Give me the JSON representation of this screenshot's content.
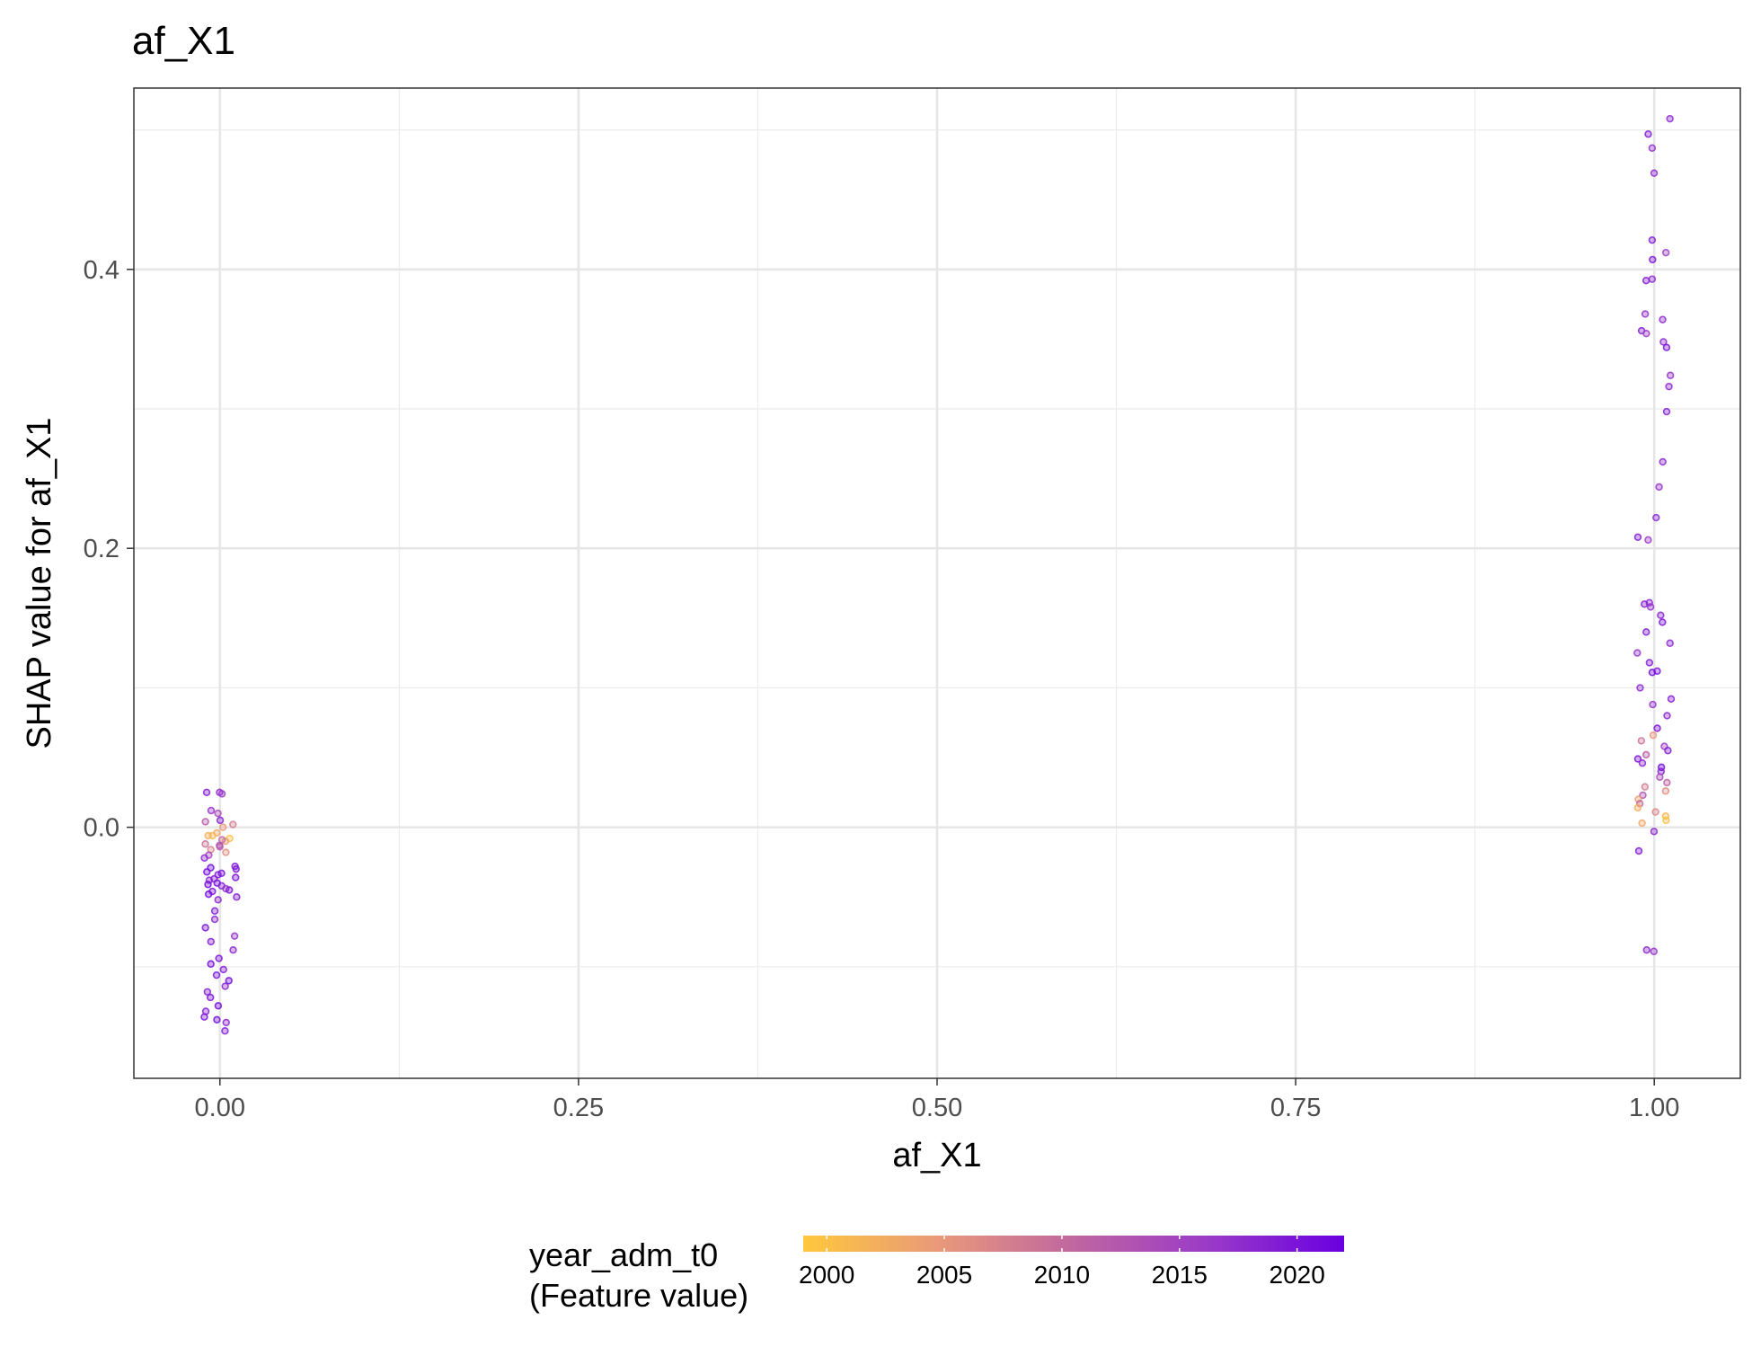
{
  "chart_data": {
    "type": "scatter",
    "title": "af_X1",
    "xlabel": "af_X1",
    "ylabel": "SHAP value for af_X1",
    "xlim": [
      -0.06,
      1.06
    ],
    "ylim": [
      -0.18,
      0.53
    ],
    "x_ticks": [
      0,
      0.25,
      0.5,
      0.75,
      1.0
    ],
    "x_tick_labels": [
      "0.00",
      "0.25",
      "0.50",
      "0.75",
      "1.00"
    ],
    "y_ticks": [
      0,
      0.2,
      0.4
    ],
    "y_tick_labels": [
      "0.0",
      "0.2",
      "0.4"
    ],
    "grid": true,
    "legend": {
      "title_line1": "year_adm_t0",
      "title_line2": "(Feature value)",
      "placement": "bottom",
      "range": [
        1999,
        2022
      ],
      "ticks": [
        2000,
        2005,
        2010,
        2015,
        2020
      ],
      "tick_labels": [
        "2000",
        "2005",
        "2010",
        "2015",
        "2020"
      ],
      "colors": [
        "#ffc83c",
        "#e9997a",
        "#c066a0",
        "#9a3ac8",
        "#6a00e0"
      ]
    },
    "groups": [
      {
        "x": 0,
        "points": [
          [
            0.025,
            2018
          ],
          [
            0.024,
            2016
          ],
          [
            0.025,
            2019
          ],
          [
            0.012,
            2017
          ],
          [
            0.01,
            2014
          ],
          [
            0.005,
            2019
          ],
          [
            0.004,
            2012
          ],
          [
            0.002,
            2008
          ],
          [
            0.0,
            2005
          ],
          [
            -0.004,
            2003
          ],
          [
            -0.006,
            2001
          ],
          [
            -0.008,
            2000
          ],
          [
            -0.01,
            2004
          ],
          [
            -0.012,
            2009
          ],
          [
            -0.014,
            2011
          ],
          [
            -0.016,
            2007
          ],
          [
            -0.018,
            2006
          ],
          [
            -0.006,
            2002
          ],
          [
            -0.009,
            2010
          ],
          [
            -0.013,
            2013
          ],
          [
            -0.02,
            2015
          ],
          [
            -0.022,
            2018
          ],
          [
            -0.028,
            2019
          ],
          [
            -0.03,
            2020
          ],
          [
            -0.032,
            2021
          ],
          [
            -0.034,
            2019
          ],
          [
            -0.036,
            2020
          ],
          [
            -0.038,
            2018
          ],
          [
            -0.04,
            2021
          ],
          [
            -0.042,
            2019
          ],
          [
            -0.044,
            2017
          ],
          [
            -0.046,
            2020
          ],
          [
            -0.048,
            2021
          ],
          [
            -0.05,
            2019
          ],
          [
            -0.052,
            2018
          ],
          [
            -0.029,
            2021
          ],
          [
            -0.033,
            2020
          ],
          [
            -0.037,
            2019
          ],
          [
            -0.041,
            2021
          ],
          [
            -0.045,
            2020
          ],
          [
            -0.06,
            2019
          ],
          [
            -0.066,
            2018
          ],
          [
            -0.072,
            2020
          ],
          [
            -0.078,
            2017
          ],
          [
            -0.082,
            2019
          ],
          [
            -0.088,
            2018
          ],
          [
            -0.094,
            2020
          ],
          [
            -0.098,
            2021
          ],
          [
            -0.102,
            2019
          ],
          [
            -0.106,
            2020
          ],
          [
            -0.11,
            2021
          ],
          [
            -0.114,
            2018
          ],
          [
            -0.118,
            2019
          ],
          [
            -0.122,
            2020
          ],
          [
            -0.128,
            2021
          ],
          [
            -0.132,
            2019
          ],
          [
            -0.136,
            2020
          ],
          [
            -0.138,
            2021
          ],
          [
            -0.14,
            2018
          ],
          [
            -0.146,
            2019
          ]
        ]
      },
      {
        "x": 1,
        "points": [
          [
            0.508,
            2018
          ],
          [
            0.497,
            2019
          ],
          [
            0.487,
            2017
          ],
          [
            0.469,
            2018
          ],
          [
            0.421,
            2019
          ],
          [
            0.412,
            2016
          ],
          [
            0.407,
            2020
          ],
          [
            0.393,
            2018
          ],
          [
            0.392,
            2019
          ],
          [
            0.368,
            2017
          ],
          [
            0.364,
            2018
          ],
          [
            0.356,
            2019
          ],
          [
            0.354,
            2016
          ],
          [
            0.348,
            2018
          ],
          [
            0.344,
            2020
          ],
          [
            0.324,
            2017
          ],
          [
            0.316,
            2018
          ],
          [
            0.298,
            2019
          ],
          [
            0.262,
            2018
          ],
          [
            0.244,
            2017
          ],
          [
            0.222,
            2018
          ],
          [
            0.208,
            2019
          ],
          [
            0.206,
            2016
          ],
          [
            0.161,
            2018
          ],
          [
            0.16,
            2019
          ],
          [
            0.158,
            2017
          ],
          [
            0.152,
            2018
          ],
          [
            0.147,
            2020
          ],
          [
            0.14,
            2019
          ],
          [
            0.132,
            2018
          ],
          [
            0.125,
            2017
          ],
          [
            0.118,
            2019
          ],
          [
            0.112,
            2020
          ],
          [
            0.111,
            2021
          ],
          [
            0.1,
            2018
          ],
          [
            0.092,
            2019
          ],
          [
            0.088,
            2017
          ],
          [
            0.08,
            2018
          ],
          [
            0.071,
            2020
          ],
          [
            0.066,
            2005
          ],
          [
            0.062,
            2009
          ],
          [
            0.058,
            2016
          ],
          [
            0.055,
            2019
          ],
          [
            0.052,
            2012
          ],
          [
            0.049,
            2020
          ],
          [
            0.046,
            2018
          ],
          [
            0.043,
            2021
          ],
          [
            0.04,
            2019
          ],
          [
            0.036,
            2014
          ],
          [
            0.032,
            2011
          ],
          [
            0.029,
            2008
          ],
          [
            0.026,
            2006
          ],
          [
            0.023,
            2013
          ],
          [
            0.02,
            2004
          ],
          [
            0.017,
            2010
          ],
          [
            0.014,
            2002
          ],
          [
            0.011,
            2007
          ],
          [
            0.008,
            2001
          ],
          [
            0.005,
            2000
          ],
          [
            0.003,
            2003
          ],
          [
            -0.003,
            2018
          ],
          [
            -0.017,
            2019
          ],
          [
            -0.088,
            2018
          ],
          [
            -0.089,
            2017
          ]
        ]
      }
    ]
  }
}
